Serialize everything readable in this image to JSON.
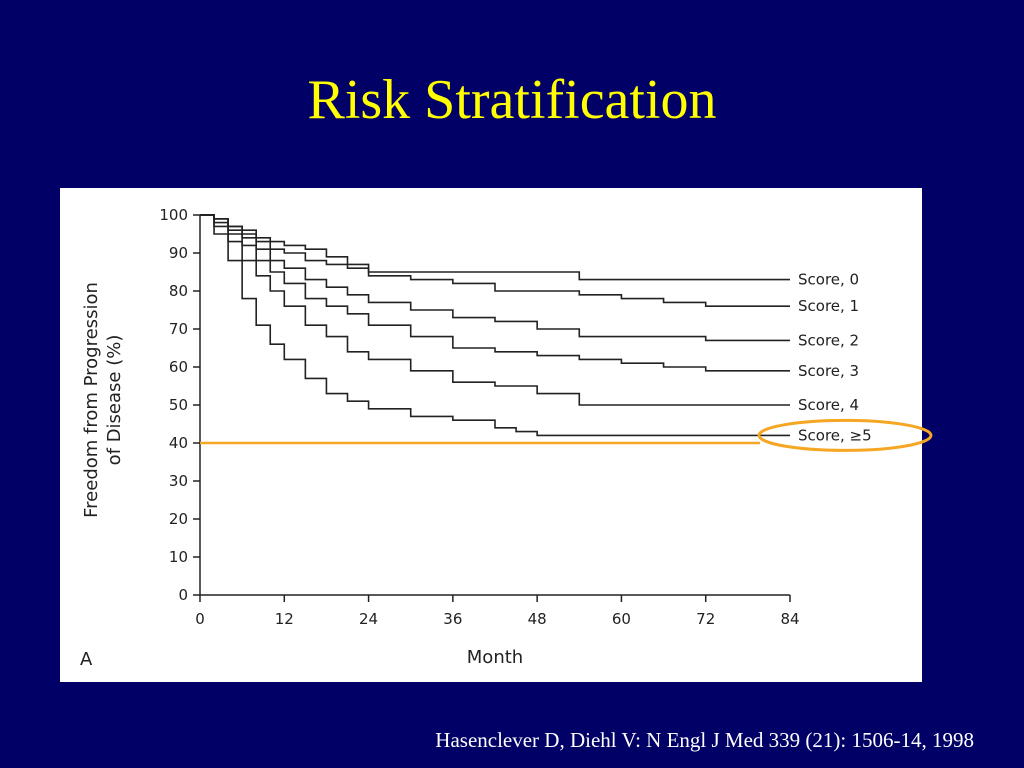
{
  "slide": {
    "title": "Risk Stratification",
    "citation": "Hasenclever D, Diehl V: N Engl J Med 339 (21): 1506-14, 1998"
  },
  "colors": {
    "background": "#000066",
    "title": "#ffff00",
    "citation": "#ffffff",
    "highlight": "#f5a623",
    "curve": "#222222"
  },
  "chart_data": {
    "type": "line",
    "panel_label": "A",
    "xlabel": "Month",
    "ylabel_line1": "Freedom from Progression",
    "ylabel_line2": "of Disease (%)",
    "xlim": [
      0,
      84
    ],
    "ylim": [
      0,
      100
    ],
    "xticks": [
      0,
      12,
      24,
      36,
      48,
      60,
      72,
      84
    ],
    "yticks": [
      0,
      10,
      20,
      30,
      40,
      50,
      60,
      70,
      80,
      90,
      100
    ],
    "grid": false,
    "legend_placement": "right end of curves",
    "reference_line_y": 40,
    "highlighted_series": "Score, ≥5",
    "series": [
      {
        "name": "Score, 0",
        "x": [
          0,
          2,
          4,
          6,
          8,
          10,
          12,
          15,
          18,
          21,
          24,
          30,
          36,
          42,
          48,
          54,
          60,
          66,
          72,
          78,
          84
        ],
        "y": [
          100,
          99,
          97,
          96,
          94,
          93,
          92,
          91,
          89,
          87,
          85,
          85,
          85,
          85,
          85,
          83,
          83,
          83,
          83,
          83,
          83
        ]
      },
      {
        "name": "Score, 1",
        "x": [
          0,
          2,
          4,
          6,
          8,
          10,
          12,
          15,
          18,
          21,
          24,
          30,
          36,
          42,
          48,
          54,
          60,
          66,
          72,
          78,
          84
        ],
        "y": [
          100,
          99,
          97,
          95,
          93,
          91,
          90,
          88,
          87,
          86,
          84,
          83,
          82,
          80,
          80,
          79,
          78,
          77,
          76,
          76,
          76
        ]
      },
      {
        "name": "Score, 2",
        "x": [
          0,
          2,
          4,
          6,
          8,
          10,
          12,
          15,
          18,
          21,
          24,
          30,
          36,
          42,
          48,
          54,
          60,
          66,
          72,
          78,
          84
        ],
        "y": [
          100,
          99,
          96,
          94,
          91,
          88,
          86,
          83,
          81,
          79,
          77,
          75,
          73,
          72,
          70,
          68,
          68,
          68,
          67,
          67,
          67
        ]
      },
      {
        "name": "Score, 3",
        "x": [
          0,
          2,
          4,
          6,
          8,
          10,
          12,
          15,
          18,
          21,
          24,
          30,
          36,
          42,
          48,
          54,
          60,
          66,
          72,
          78,
          84
        ],
        "y": [
          100,
          98,
          95,
          92,
          88,
          85,
          82,
          78,
          76,
          74,
          71,
          68,
          65,
          64,
          63,
          62,
          61,
          60,
          59,
          59,
          59
        ]
      },
      {
        "name": "Score, 4",
        "x": [
          0,
          2,
          4,
          6,
          8,
          10,
          12,
          15,
          18,
          21,
          24,
          30,
          36,
          42,
          48,
          54,
          60,
          66,
          72,
          78,
          84
        ],
        "y": [
          100,
          97,
          93,
          88,
          84,
          80,
          76,
          71,
          68,
          64,
          62,
          59,
          56,
          55,
          53,
          50,
          50,
          50,
          50,
          50,
          50
        ]
      },
      {
        "name": "Score, ≥5",
        "x": [
          0,
          2,
          4,
          6,
          8,
          10,
          12,
          15,
          18,
          21,
          24,
          30,
          36,
          42,
          45,
          48,
          54,
          60,
          66,
          72,
          78,
          84
        ],
        "y": [
          100,
          95,
          88,
          78,
          71,
          66,
          62,
          57,
          53,
          51,
          49,
          47,
          46,
          44,
          43,
          42,
          42,
          42,
          42,
          42,
          42,
          42
        ]
      }
    ]
  }
}
